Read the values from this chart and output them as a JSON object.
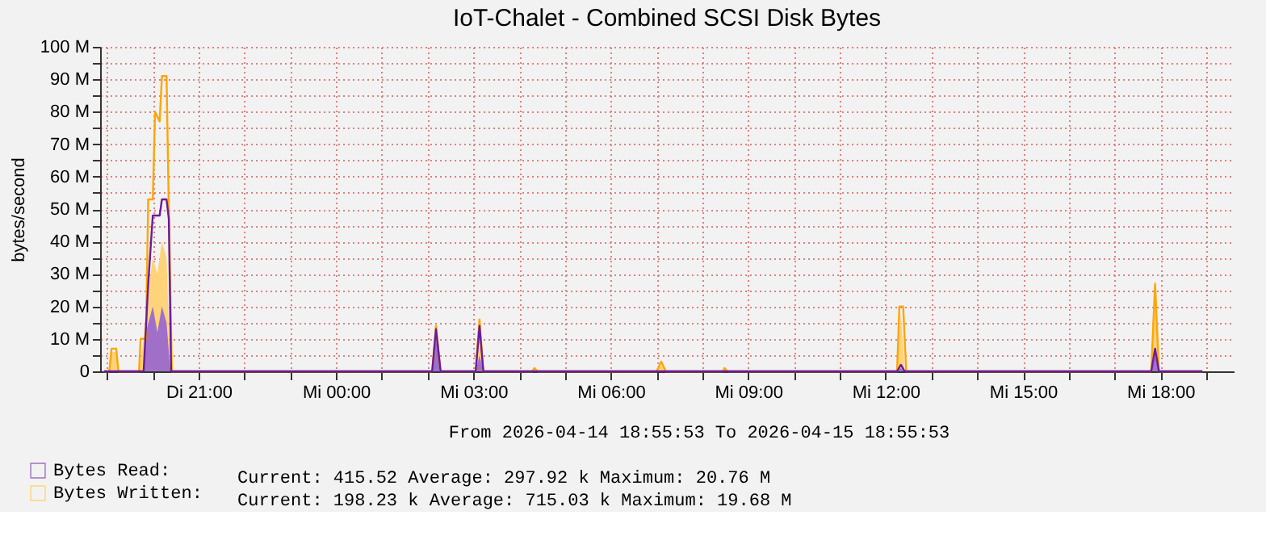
{
  "chart_data": {
    "type": "area",
    "title": "IoT-Chalet - Combined SCSI Disk Bytes",
    "ylabel": "bytes/second",
    "xlim": [
      "2026-04-14T18:51",
      "2026-04-15T19:36"
    ],
    "xticks": [
      {
        "value": "2026-04-14T19:00",
        "label": null
      },
      {
        "value": "2026-04-14T20:00",
        "label": null
      },
      {
        "value": "2026-04-14T21:00",
        "label": "Di 21:00"
      },
      {
        "value": "2026-04-14T22:00",
        "label": null
      },
      {
        "value": "2026-04-14T23:00",
        "label": null
      },
      {
        "value": "2026-04-15T00:00",
        "label": "Mi 00:00"
      },
      {
        "value": "2026-04-15T01:00",
        "label": null
      },
      {
        "value": "2026-04-15T02:00",
        "label": null
      },
      {
        "value": "2026-04-15T03:00",
        "label": "Mi 03:00"
      },
      {
        "value": "2026-04-15T04:00",
        "label": null
      },
      {
        "value": "2026-04-15T05:00",
        "label": null
      },
      {
        "value": "2026-04-15T06:00",
        "label": "Mi 06:00"
      },
      {
        "value": "2026-04-15T07:00",
        "label": null
      },
      {
        "value": "2026-04-15T08:00",
        "label": null
      },
      {
        "value": "2026-04-15T09:00",
        "label": "Mi 09:00"
      },
      {
        "value": "2026-04-15T10:00",
        "label": null
      },
      {
        "value": "2026-04-15T11:00",
        "label": null
      },
      {
        "value": "2026-04-15T12:00",
        "label": "Mi 12:00"
      },
      {
        "value": "2026-04-15T13:00",
        "label": null
      },
      {
        "value": "2026-04-15T14:00",
        "label": null
      },
      {
        "value": "2026-04-15T15:00",
        "label": "Mi 15:00"
      },
      {
        "value": "2026-04-15T16:00",
        "label": null
      },
      {
        "value": "2026-04-15T17:00",
        "label": null
      },
      {
        "value": "2026-04-15T18:00",
        "label": "Mi 18:00"
      },
      {
        "value": "2026-04-15T19:00",
        "label": null
      }
    ],
    "ylim": [
      0,
      100
    ],
    "yticks": [
      {
        "value": 0,
        "label": "0"
      },
      {
        "value": 5,
        "label": null
      },
      {
        "value": 10,
        "label": "10 M"
      },
      {
        "value": 15,
        "label": null
      },
      {
        "value": 20,
        "label": "20 M"
      },
      {
        "value": 25,
        "label": null
      },
      {
        "value": 30,
        "label": "30 M"
      },
      {
        "value": 35,
        "label": null
      },
      {
        "value": 40,
        "label": "40 M"
      },
      {
        "value": 45,
        "label": null
      },
      {
        "value": 50,
        "label": "50 M"
      },
      {
        "value": 55,
        "label": null
      },
      {
        "value": 60,
        "label": "60 M"
      },
      {
        "value": 65,
        "label": null
      },
      {
        "value": 70,
        "label": "70 M"
      },
      {
        "value": 75,
        "label": null
      },
      {
        "value": 80,
        "label": "80 M"
      },
      {
        "value": 85,
        "label": null
      },
      {
        "value": 90,
        "label": "90 M"
      },
      {
        "value": 95,
        "label": null
      },
      {
        "value": 100,
        "label": "100 M"
      }
    ],
    "grid": true,
    "legend": "bottom",
    "annotations": [
      "From 2026-04-14 18:55:53 To 2026-04-15 18:55:53",
      "Current:  415.52    Average:  297.92 k  Maximum:   20.76 M",
      "Current:  198.23 k  Average:  715.03 k  Maximum:   19.68 M"
    ],
    "series": [
      {
        "name": "Bytes Read:",
        "color": "#a070c8",
        "x": [
          "2026-04-14T18:56",
          "2026-04-14T19:48",
          "2026-04-14T19:51",
          "2026-04-14T20:00",
          "2026-04-14T20:06",
          "2026-04-14T20:12",
          "2026-04-14T20:18",
          "2026-04-14T20:23",
          "2026-04-15T02:06",
          "2026-04-15T02:11",
          "2026-04-15T02:17",
          "2026-04-15T03:03",
          "2026-04-15T03:08",
          "2026-04-15T03:13",
          "2026-04-15T12:15",
          "2026-04-15T12:20",
          "2026-04-15T12:25",
          "2026-04-15T17:48",
          "2026-04-15T17:53",
          "2026-04-15T17:58",
          "2026-04-15T18:55"
        ],
        "values": [
          0,
          0,
          12,
          20,
          12,
          20,
          15,
          0,
          0,
          10,
          0,
          0,
          5,
          0,
          0,
          1,
          0,
          0,
          5,
          0,
          0
        ]
      },
      {
        "name": "Bytes Written:",
        "color": "#ffd37a",
        "x": [
          "2026-04-14T18:56",
          "2026-04-14T19:03",
          "2026-04-14T19:06",
          "2026-04-14T19:12",
          "2026-04-14T19:15",
          "2026-04-14T19:42",
          "2026-04-14T19:48",
          "2026-04-14T19:54",
          "2026-04-14T20:00",
          "2026-04-14T20:06",
          "2026-04-14T20:12",
          "2026-04-14T20:18",
          "2026-04-14T20:23",
          "2026-04-15T02:06",
          "2026-04-15T02:11",
          "2026-04-15T02:17",
          "2026-04-15T03:03",
          "2026-04-15T03:08",
          "2026-04-15T03:13",
          "2026-04-15T07:00",
          "2026-04-15T07:06",
          "2026-04-15T07:12",
          "2026-04-15T12:15",
          "2026-04-15T12:20",
          "2026-04-15T12:25",
          "2026-04-15T17:48",
          "2026-04-15T17:53",
          "2026-04-15T17:58",
          "2026-04-15T18:55"
        ],
        "values": [
          0,
          0,
          6,
          6,
          0,
          0,
          10,
          25,
          35,
          30,
          40,
          35,
          0,
          0,
          13,
          0,
          0,
          14,
          0,
          0,
          2,
          0,
          0,
          18,
          0,
          0,
          20,
          0,
          0
        ]
      },
      {
        "type": "line",
        "color": "#6a1b9a",
        "x": [
          "2026-04-14T18:56",
          "2026-04-14T19:48",
          "2026-04-14T19:54",
          "2026-04-14T20:00",
          "2026-04-14T20:09",
          "2026-04-14T20:12",
          "2026-04-14T20:18",
          "2026-04-14T20:21",
          "2026-04-14T20:24",
          "2026-04-15T02:06",
          "2026-04-15T02:11",
          "2026-04-15T02:17",
          "2026-04-15T03:03",
          "2026-04-15T03:08",
          "2026-04-15T03:13",
          "2026-04-15T12:15",
          "2026-04-15T12:20",
          "2026-04-15T12:25",
          "2026-04-15T17:48",
          "2026-04-15T17:53",
          "2026-04-15T17:58",
          "2026-04-15T18:55"
        ],
        "values": [
          0,
          0,
          27,
          48,
          48,
          53,
          53,
          47,
          0,
          0,
          13,
          0,
          0,
          14,
          0,
          0,
          2,
          0,
          0,
          7,
          0,
          0
        ]
      },
      {
        "type": "line",
        "color": "#ffa500",
        "x": [
          "2026-04-14T18:56",
          "2026-04-14T19:03",
          "2026-04-14T19:06",
          "2026-04-14T19:12",
          "2026-04-14T19:15",
          "2026-04-14T19:42",
          "2026-04-14T19:44",
          "2026-04-14T19:51",
          "2026-04-14T19:54",
          "2026-04-14T20:00",
          "2026-04-14T20:03",
          "2026-04-14T20:09",
          "2026-04-14T20:12",
          "2026-04-14T20:18",
          "2026-04-14T20:21",
          "2026-04-14T20:25",
          "2026-04-15T02:06",
          "2026-04-15T02:11",
          "2026-04-15T02:17",
          "2026-04-15T03:03",
          "2026-04-15T03:08",
          "2026-04-15T03:13",
          "2026-04-15T04:17",
          "2026-04-15T04:20",
          "2026-04-15T04:24",
          "2026-04-15T07:00",
          "2026-04-15T07:06",
          "2026-04-15T07:12",
          "2026-04-15T08:27",
          "2026-04-15T08:29",
          "2026-04-15T08:33",
          "2026-04-15T12:15",
          "2026-04-15T12:18",
          "2026-04-15T12:23",
          "2026-04-15T12:27",
          "2026-04-15T17:48",
          "2026-04-15T17:53",
          "2026-04-15T17:58",
          "2026-04-15T18:55"
        ],
        "values": [
          0,
          0,
          7,
          7,
          0,
          0,
          10,
          10,
          53,
          53,
          80,
          77,
          91,
          91,
          50,
          0,
          0,
          14,
          0,
          0,
          16,
          0,
          0,
          1,
          0,
          0,
          3,
          0,
          0,
          1,
          0,
          0,
          20,
          20,
          0,
          0,
          27,
          0,
          0
        ]
      }
    ]
  }
}
